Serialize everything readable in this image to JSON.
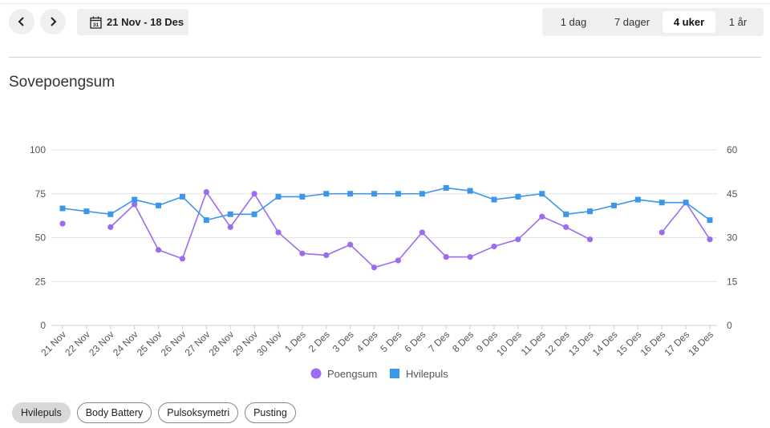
{
  "nav": {
    "prev_icon": "chevron-left-icon",
    "next_icon": "chevron-right-icon"
  },
  "date_range": {
    "label": "21 Nov - 18 Des",
    "icon": "calendar-icon",
    "icon_day": "31"
  },
  "range_tabs": [
    {
      "label": "1 dag",
      "active": false
    },
    {
      "label": "7 dager",
      "active": false
    },
    {
      "label": "4 uker",
      "active": true
    },
    {
      "label": "1 år",
      "active": false
    }
  ],
  "chart_title": "Sovepoengsum",
  "chart_data": {
    "type": "line",
    "categories": [
      "21 Nov",
      "22 Nov",
      "23 Nov",
      "24 Nov",
      "25 Nov",
      "26 Nov",
      "27 Nov",
      "28 Nov",
      "29 Nov",
      "30 Nov",
      "1 Des",
      "2 Des",
      "3 Des",
      "4 Des",
      "5 Des",
      "6 Des",
      "7 Des",
      "8 Des",
      "9 Des",
      "10 Des",
      "11 Des",
      "12 Des",
      "13 Des",
      "14 Des",
      "15 Des",
      "16 Des",
      "17 Des",
      "18 Des"
    ],
    "y_left_ticks": [
      "100",
      "75",
      "50",
      "25",
      "0"
    ],
    "y_right_ticks": [
      "60",
      "45",
      "30",
      "15",
      "0"
    ],
    "ylim_left": [
      0,
      100
    ],
    "ylim_right": [
      0,
      60
    ],
    "grid": true,
    "legend_position": "bottom",
    "series": [
      {
        "name": "Poengsum",
        "axis": "left",
        "marker": "circle",
        "color": "#9c6cf0",
        "values": [
          58,
          null,
          56,
          69,
          43,
          38,
          76,
          56,
          75,
          53,
          41,
          40,
          46,
          33,
          37,
          53,
          39,
          39,
          45,
          49,
          62,
          56,
          49,
          null,
          null,
          53,
          70,
          49
        ]
      },
      {
        "name": "Hvilepuls",
        "axis": "right",
        "marker": "square",
        "color": "#3d97e8",
        "values": [
          40,
          39,
          38,
          43,
          41,
          44,
          36,
          38,
          38,
          44,
          44,
          45,
          45,
          45,
          45,
          45,
          47,
          46,
          43,
          44,
          45,
          38,
          39,
          41,
          43,
          42,
          42,
          36
        ]
      }
    ]
  },
  "chips": [
    {
      "label": "Hvilepuls",
      "active": true
    },
    {
      "label": "Body Battery",
      "active": false
    },
    {
      "label": "Pulsoksymetri",
      "active": false
    },
    {
      "label": "Pusting",
      "active": false
    }
  ]
}
